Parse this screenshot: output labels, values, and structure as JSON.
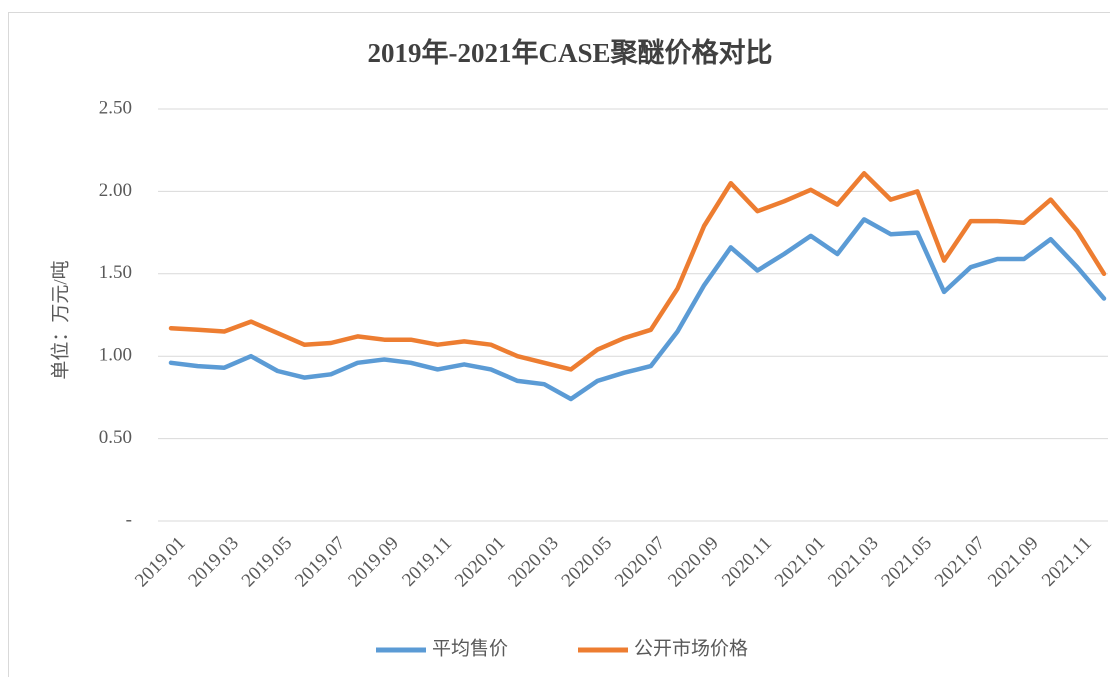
{
  "chart_data": {
    "type": "line",
    "title": "2019年-2021年CASE聚醚价格对比",
    "y_label": "单位：万元/吨",
    "categories": [
      "2019.01",
      null,
      "2019.03",
      null,
      "2019.05",
      null,
      "2019.07",
      null,
      "2019.09",
      null,
      "2019.11",
      null,
      "2020.01",
      null,
      "2020.03",
      null,
      "2020.05",
      null,
      "2020.07",
      null,
      "2020.09",
      null,
      "2020.11",
      null,
      "2021.01",
      null,
      "2021.03",
      null,
      "2021.05",
      null,
      "2021.07",
      null,
      "2021.09",
      null,
      "2021.11",
      null
    ],
    "series": [
      {
        "name": "平均售价",
        "color": "#5b9bd5",
        "values": [
          0.96,
          0.94,
          0.93,
          1.0,
          0.91,
          0.87,
          0.89,
          0.96,
          0.98,
          0.96,
          0.92,
          0.95,
          0.92,
          0.85,
          0.83,
          0.74,
          0.85,
          0.9,
          0.94,
          1.15,
          1.43,
          1.66,
          1.52,
          1.62,
          1.73,
          1.62,
          1.83,
          1.74,
          1.75,
          1.39,
          1.54,
          1.59,
          1.59,
          1.71,
          1.54,
          1.35
        ]
      },
      {
        "name": "公开市场价格",
        "color": "#ed7d31",
        "values": [
          1.17,
          1.16,
          1.15,
          1.21,
          1.14,
          1.07,
          1.08,
          1.12,
          1.1,
          1.1,
          1.07,
          1.09,
          1.07,
          1.0,
          0.96,
          0.92,
          1.04,
          1.11,
          1.16,
          1.41,
          1.79,
          2.05,
          1.88,
          1.94,
          2.01,
          1.92,
          2.11,
          1.95,
          2.0,
          1.58,
          1.82,
          1.82,
          1.81,
          1.95,
          1.76,
          1.5
        ]
      }
    ],
    "ylim": [
      0,
      2.5
    ],
    "yticks": [
      {
        "value": 0,
        "label": "-"
      },
      {
        "value": 0.5,
        "label": "0.50"
      },
      {
        "value": 1,
        "label": "1.00"
      },
      {
        "value": 1.5,
        "label": "1.50"
      },
      {
        "value": 2,
        "label": "2.00"
      },
      {
        "value": 2.5,
        "label": "2.50"
      }
    ],
    "grid": true,
    "legend": "bottom"
  }
}
